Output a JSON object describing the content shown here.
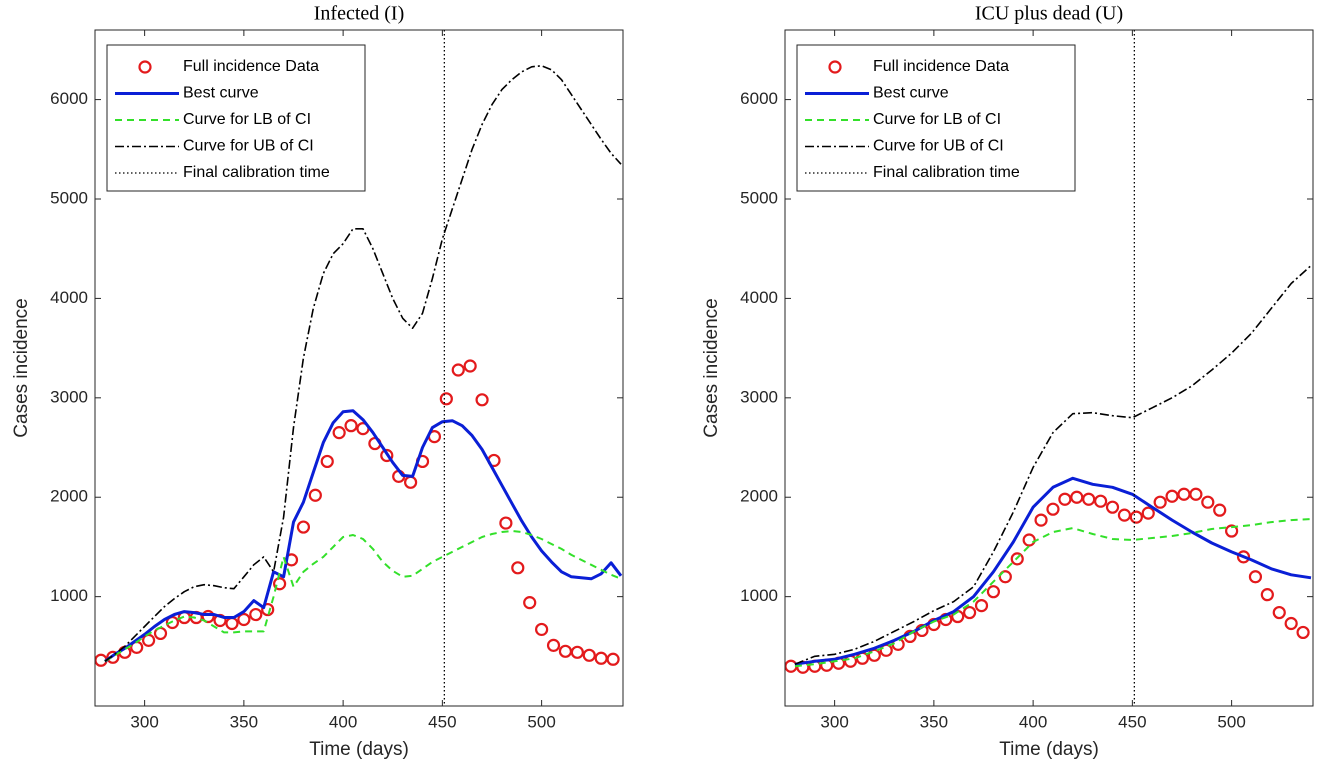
{
  "chart_data": [
    {
      "type": "line",
      "title": "Infected (I)",
      "xlabel": "Time (days)",
      "ylabel": "Cases incidence",
      "xlim": [
        275,
        541
      ],
      "ylim": [
        -100,
        6700
      ],
      "xticks": [
        300,
        350,
        400,
        450,
        500
      ],
      "yticks": [
        1000,
        2000,
        3000,
        4000,
        5000,
        6000
      ],
      "data_x": [
        278,
        284,
        290,
        296,
        302,
        308,
        314,
        320,
        326,
        332,
        338,
        344,
        350,
        356,
        362,
        368,
        374,
        380,
        386,
        392,
        398,
        404,
        410,
        416,
        422,
        428,
        434,
        440,
        446,
        452,
        458,
        464,
        470,
        476,
        482,
        488,
        494,
        500,
        506,
        512,
        518,
        524,
        530,
        536
      ],
      "curve_x": [
        280,
        285,
        290,
        295,
        300,
        305,
        310,
        315,
        320,
        325,
        330,
        335,
        340,
        345,
        350,
        355,
        360,
        365,
        370,
        375,
        380,
        385,
        390,
        395,
        400,
        405,
        410,
        415,
        420,
        425,
        430,
        435,
        440,
        445,
        450,
        455,
        460,
        465,
        470,
        475,
        480,
        485,
        490,
        495,
        500,
        505,
        510,
        515,
        520,
        525,
        530,
        535,
        540
      ],
      "series": [
        {
          "name": "Full incidence Data",
          "color": "#e31a1c",
          "style": "markers",
          "values": [
            360,
            390,
            440,
            490,
            560,
            630,
            740,
            790,
            790,
            800,
            760,
            730,
            770,
            820,
            870,
            1130,
            1370,
            1700,
            2020,
            2360,
            2650,
            2720,
            2690,
            2540,
            2420,
            2210,
            2150,
            2360,
            2610,
            2990,
            3280,
            3320,
            2980,
            2370,
            1740,
            1290,
            940,
            670,
            510,
            450,
            440,
            410,
            380,
            370
          ]
        },
        {
          "name": "Best curve",
          "color": "#0a1fd6",
          "style": "solid",
          "values": [
            350,
            420,
            480,
            550,
            620,
            700,
            770,
            820,
            850,
            840,
            820,
            820,
            790,
            790,
            850,
            960,
            890,
            1250,
            1200,
            1750,
            1950,
            2250,
            2550,
            2750,
            2860,
            2870,
            2780,
            2650,
            2500,
            2350,
            2220,
            2210,
            2500,
            2700,
            2760,
            2770,
            2720,
            2620,
            2480,
            2300,
            2120,
            1940,
            1760,
            1600,
            1460,
            1350,
            1250,
            1200,
            1190,
            1180,
            1230,
            1340,
            1210
          ]
        },
        {
          "name": "Curve for LB of CI",
          "color": "#33e02a",
          "style": "dashed",
          "values": [
            350,
            410,
            470,
            530,
            600,
            660,
            710,
            760,
            800,
            790,
            760,
            700,
            640,
            640,
            650,
            650,
            650,
            1000,
            1400,
            1100,
            1250,
            1330,
            1400,
            1500,
            1600,
            1620,
            1580,
            1480,
            1350,
            1260,
            1200,
            1210,
            1280,
            1350,
            1400,
            1450,
            1500,
            1550,
            1600,
            1630,
            1650,
            1660,
            1650,
            1620,
            1580,
            1530,
            1480,
            1420,
            1370,
            1320,
            1270,
            1220,
            1180
          ]
        },
        {
          "name": "Curve for UB of CI",
          "color": "#000000",
          "style": "dashdot",
          "values": [
            350,
            420,
            500,
            600,
            700,
            800,
            900,
            980,
            1050,
            1100,
            1120,
            1110,
            1090,
            1080,
            1200,
            1320,
            1400,
            1250,
            1800,
            2700,
            3400,
            3900,
            4250,
            4450,
            4550,
            4700,
            4700,
            4500,
            4250,
            4000,
            3800,
            3700,
            3850,
            4200,
            4600,
            4900,
            5200,
            5500,
            5750,
            5950,
            6100,
            6200,
            6280,
            6330,
            6340,
            6300,
            6200,
            6050,
            5900,
            5750,
            5600,
            5460,
            5350
          ]
        },
        {
          "name": "Final calibration time",
          "color": "#000000",
          "style": "dotted",
          "x": 451
        }
      ]
    },
    {
      "type": "line",
      "title": "ICU plus dead (U)",
      "xlabel": "Time (days)",
      "ylabel": "Cases incidence",
      "xlim": [
        275,
        541
      ],
      "ylim": [
        -100,
        6700
      ],
      "xticks": [
        300,
        350,
        400,
        450,
        500
      ],
      "yticks": [
        1000,
        2000,
        3000,
        4000,
        5000,
        6000
      ],
      "data_x": [
        278,
        284,
        290,
        296,
        302,
        308,
        314,
        320,
        326,
        332,
        338,
        344,
        350,
        356,
        362,
        368,
        374,
        380,
        386,
        392,
        398,
        404,
        410,
        416,
        422,
        428,
        434,
        440,
        446,
        452,
        458,
        464,
        470,
        476,
        482,
        488,
        494,
        500,
        506,
        512,
        518,
        524,
        530,
        536
      ],
      "curve_x": [
        280,
        290,
        300,
        310,
        320,
        330,
        340,
        350,
        360,
        370,
        380,
        390,
        400,
        410,
        420,
        430,
        440,
        450,
        460,
        470,
        480,
        490,
        500,
        510,
        520,
        530,
        540
      ],
      "series": [
        {
          "name": "Full incidence Data",
          "color": "#e31a1c",
          "style": "markers",
          "values": [
            300,
            290,
            300,
            310,
            330,
            350,
            380,
            410,
            460,
            520,
            600,
            660,
            720,
            770,
            800,
            840,
            910,
            1050,
            1200,
            1380,
            1570,
            1770,
            1880,
            1980,
            2000,
            1980,
            1960,
            1900,
            1820,
            1800,
            1840,
            1950,
            2010,
            2030,
            2030,
            1950,
            1870,
            1660,
            1400,
            1200,
            1020,
            840,
            730,
            640
          ]
        },
        {
          "name": "Best curve",
          "color": "#0a1fd6",
          "style": "solid",
          "values": [
            320,
            350,
            370,
            420,
            480,
            560,
            650,
            760,
            850,
            1000,
            1250,
            1550,
            1900,
            2100,
            2190,
            2130,
            2100,
            2030,
            1900,
            1770,
            1650,
            1540,
            1450,
            1370,
            1280,
            1220,
            1190
          ]
        },
        {
          "name": "Curve for LB of CI",
          "color": "#33e02a",
          "style": "dashed",
          "values": [
            300,
            320,
            350,
            380,
            450,
            530,
            650,
            750,
            820,
            950,
            1150,
            1350,
            1550,
            1650,
            1690,
            1630,
            1580,
            1570,
            1590,
            1610,
            1640,
            1680,
            1700,
            1720,
            1750,
            1770,
            1780
          ]
        },
        {
          "name": "Curve for UB of CI",
          "color": "#000000",
          "style": "dashdot",
          "values": [
            320,
            400,
            420,
            470,
            550,
            650,
            750,
            860,
            950,
            1100,
            1450,
            1850,
            2300,
            2650,
            2840,
            2850,
            2820,
            2800,
            2900,
            3000,
            3120,
            3280,
            3450,
            3650,
            3900,
            4150,
            4330
          ]
        },
        {
          "name": "Final calibration time",
          "color": "#000000",
          "style": "dotted",
          "x": 451
        }
      ]
    }
  ]
}
